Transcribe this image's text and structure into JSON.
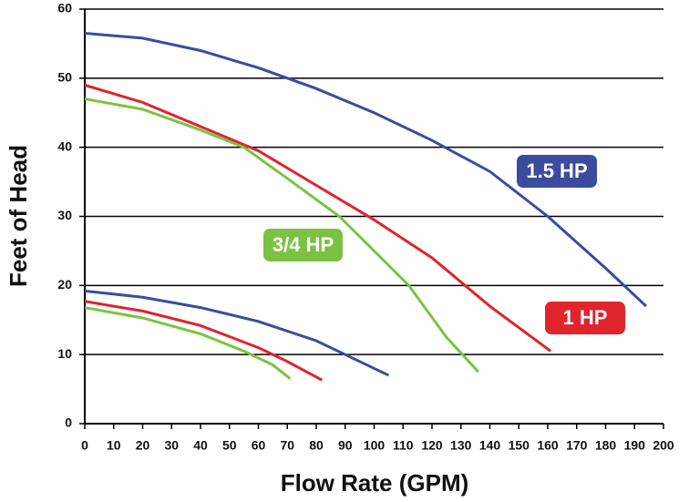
{
  "chart_data": {
    "type": "line",
    "x_label": "Flow Rate (GPM)",
    "y_label": "Feet of Head",
    "series": [
      {
        "name": "1.5 HP",
        "color": "#3b4c9e",
        "x": [
          0,
          20,
          40,
          60,
          80,
          100,
          120,
          140,
          160,
          180,
          194
        ],
        "values": [
          56.5,
          55.8,
          54,
          51.5,
          48.5,
          45,
          41,
          36.5,
          30,
          22.5,
          17
        ]
      },
      {
        "name": "1 HP",
        "color": "#e0242c",
        "x": [
          0,
          20,
          40,
          60,
          80,
          100,
          120,
          140,
          161
        ],
        "values": [
          49,
          46.5,
          43,
          39.5,
          34.5,
          29.5,
          24,
          17,
          10.5
        ]
      },
      {
        "name": "3/4 HP",
        "color": "#7cc242",
        "x": [
          0,
          20,
          40,
          55,
          70,
          88,
          100,
          112,
          125,
          136
        ],
        "values": [
          47,
          45.5,
          42.5,
          40,
          35.5,
          30,
          25,
          20,
          12.5,
          7.5
        ]
      },
      {
        "color": "#3b4c9e",
        "x": [
          0,
          20,
          40,
          60,
          80,
          90,
          105
        ],
        "values": [
          19.2,
          18.3,
          16.8,
          14.8,
          12,
          10,
          7
        ]
      },
      {
        "color": "#e0242c",
        "x": [
          0,
          20,
          40,
          60,
          70,
          82
        ],
        "values": [
          17.7,
          16.3,
          14.2,
          11,
          9,
          6.3
        ]
      },
      {
        "color": "#7cc242",
        "x": [
          0,
          20,
          40,
          55,
          65,
          71
        ],
        "values": [
          16.8,
          15.3,
          13,
          10.5,
          8.5,
          6.5
        ]
      }
    ],
    "xlim": [
      0,
      200
    ],
    "xticks": [
      0,
      10,
      20,
      30,
      40,
      50,
      60,
      70,
      80,
      90,
      100,
      110,
      120,
      130,
      140,
      150,
      160,
      170,
      180,
      190,
      200
    ],
    "ylim": [
      0,
      60
    ],
    "yticks": [
      0,
      10,
      20,
      30,
      40,
      50,
      60
    ],
    "grid": true
  }
}
